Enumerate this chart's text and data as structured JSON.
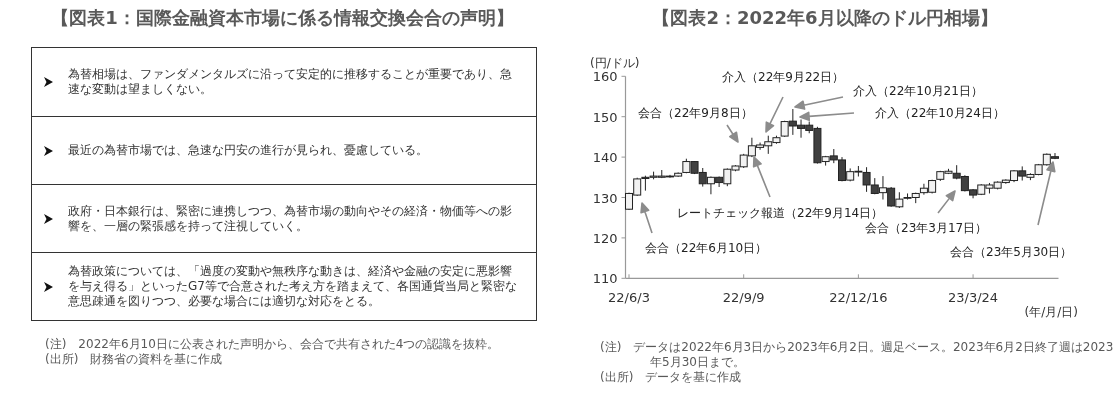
{
  "chart_data": [
    {
      "type": "other",
      "title": "【図表1：国際金融資本市場に係る情報交換会合の声明】",
      "annotations": [
        "為替相場は、ファンダメンタルズに沿って安定的に推移することが重要であり、急速な変動は望ましくない。",
        "最近の為替市場では、急速な円安の進行が見られ、憂慮している。",
        "政府・日本銀行は、緊密に連携しつつ、為替市場の動向やその経済・物価等への影響を、一層の緊張感を持って注視していく。",
        "為替政策については、「過度の変動や無秩序な動きは、経済や金融の安定に悪影響を与え得る」といったG7等で合意された考え方を踏まえて、各国通貨当局と緊密な意思疎通を図りつつ、必要な場合には適切な対応をとる。",
        "(注)　2022年6月10日に公表された声明から、会合で共有された4つの認識を抜粋。",
        "(出所)　財務省の資料を基に作成"
      ]
    },
    {
      "type": "candlestick",
      "title": "【図表2：2022年6月以降のドル円相場】",
      "ylabel": "(円/ドル)",
      "xlabel": "(年/月/日)",
      "xlim": [
        "2022-05-31",
        "2023-06-05"
      ],
      "ylim": [
        110,
        160
      ],
      "yticks": [
        110,
        120,
        130,
        140,
        150,
        160
      ],
      "xticks": [
        {
          "value": "2022-06-03",
          "label": "22/6/3"
        },
        {
          "value": "2022-09-09",
          "label": "22/9/9"
        },
        {
          "value": "2022-12-16",
          "label": "22/12/16"
        },
        {
          "value": "2023-03-24",
          "label": "23/3/24"
        }
      ],
      "x": [
        "2022-06-03",
        "2022-06-10",
        "2022-06-17",
        "2022-06-24",
        "2022-07-01",
        "2022-07-08",
        "2022-07-15",
        "2022-07-22",
        "2022-07-29",
        "2022-08-05",
        "2022-08-12",
        "2022-08-19",
        "2022-08-26",
        "2022-09-02",
        "2022-09-09",
        "2022-09-16",
        "2022-09-23",
        "2022-09-30",
        "2022-10-07",
        "2022-10-14",
        "2022-10-21",
        "2022-10-28",
        "2022-11-04",
        "2022-11-11",
        "2022-11-18",
        "2022-11-25",
        "2022-12-02",
        "2022-12-09",
        "2022-12-16",
        "2022-12-23",
        "2022-12-30",
        "2023-01-06",
        "2023-01-13",
        "2023-01-20",
        "2023-01-27",
        "2023-02-03",
        "2023-02-10",
        "2023-02-17",
        "2023-02-24",
        "2023-03-03",
        "2023-03-10",
        "2023-03-17",
        "2023-03-24",
        "2023-03-31",
        "2023-04-07",
        "2023-04-14",
        "2023-04-21",
        "2023-04-28",
        "2023-05-05",
        "2023-05-12",
        "2023-05-19",
        "2023-05-26",
        "2023-06-02"
      ],
      "ohlc": [
        [
          127.1,
          131.2,
          126.9,
          131.0
        ],
        [
          130.6,
          134.9,
          130.4,
          134.6
        ],
        [
          135.0,
          135.4,
          131.7,
          134.7
        ],
        [
          135.0,
          136.4,
          134.5,
          135.3
        ],
        [
          135.0,
          136.8,
          134.8,
          135.3
        ],
        [
          135.1,
          135.6,
          134.9,
          135.3
        ],
        [
          135.3,
          136.2,
          135.1,
          136.0
        ],
        [
          136.2,
          139.6,
          136.0,
          138.9
        ],
        [
          138.9,
          139.0,
          135.8,
          136.0
        ],
        [
          136.2,
          137.3,
          132.7,
          133.4
        ],
        [
          133.4,
          135.2,
          130.8,
          135.0
        ],
        [
          135.0,
          135.2,
          132.6,
          133.7
        ],
        [
          133.4,
          137.2,
          132.8,
          137.0
        ],
        [
          136.8,
          138.0,
          136.5,
          137.8
        ],
        [
          137.6,
          140.8,
          137.3,
          140.5
        ],
        [
          140.3,
          144.8,
          140.0,
          142.8
        ],
        [
          142.4,
          143.6,
          141.8,
          143.0
        ],
        [
          142.8,
          145.3,
          140.8,
          143.8
        ],
        [
          143.6,
          145.3,
          143.3,
          144.8
        ],
        [
          145.2,
          149.0,
          145.0,
          148.8
        ],
        [
          148.9,
          151.9,
          145.5,
          147.7
        ],
        [
          147.9,
          149.3,
          144.8,
          147.1
        ],
        [
          147.9,
          148.8,
          145.9,
          146.6
        ],
        [
          147.1,
          147.5,
          138.4,
          138.6
        ],
        [
          138.9,
          140.3,
          137.9,
          140.1
        ],
        [
          140.3,
          142.0,
          138.5,
          139.3
        ],
        [
          139.3,
          140.0,
          134.0,
          134.2
        ],
        [
          134.3,
          137.2,
          134.0,
          136.4
        ],
        [
          136.3,
          137.8,
          135.2,
          136.5
        ],
        [
          136.2,
          137.5,
          131.4,
          133.1
        ],
        [
          133.1,
          134.8,
          130.8,
          131.0
        ],
        [
          131.2,
          135.3,
          129.5,
          132.4
        ],
        [
          132.3,
          132.6,
          127.7,
          127.9
        ],
        [
          127.7,
          131.3,
          127.4,
          129.6
        ],
        [
          129.9,
          131.0,
          129.5,
          130.0
        ],
        [
          130.0,
          131.2,
          128.6,
          131.0
        ],
        [
          131.2,
          133.4,
          130.7,
          132.3
        ],
        [
          131.3,
          134.4,
          131.0,
          134.2
        ],
        [
          134.5,
          136.6,
          134.1,
          136.4
        ],
        [
          136.0,
          137.1,
          135.8,
          136.5
        ],
        [
          136.0,
          138.0,
          134.5,
          134.8
        ],
        [
          135.2,
          135.5,
          131.5,
          131.7
        ],
        [
          131.9,
          132.1,
          129.8,
          130.6
        ],
        [
          130.8,
          133.3,
          130.6,
          133.1
        ],
        [
          132.3,
          133.6,
          131.0,
          133.1
        ],
        [
          132.3,
          134.0,
          132.0,
          133.8
        ],
        [
          133.7,
          134.5,
          133.4,
          134.3
        ],
        [
          134.2,
          136.8,
          133.8,
          136.6
        ],
        [
          136.6,
          137.7,
          134.2,
          135.3
        ],
        [
          135.0,
          136.0,
          134.3,
          135.7
        ],
        [
          135.7,
          138.3,
          135.5,
          138.1
        ],
        [
          138.1,
          140.9,
          137.9,
          140.7
        ],
        [
          140.1,
          141.0,
          139.5,
          139.7
        ]
      ],
      "annotations": [
        "会合（22年6月10日）",
        "会合（22年9月8日）",
        "介入（22年9月22日）",
        "レートチェック報道（22年9月14日）",
        "介入（22年10月21日）",
        "介入（22年10月24日）",
        "会合（23年3月17日）",
        "会合（23年5月30日）",
        "(注)　データは2022年6月3日から2023年6月2日。週足ベース。2023年6月2日終了週は2023年5月30日まで。",
        "(出所)　データを基に作成"
      ]
    }
  ]
}
